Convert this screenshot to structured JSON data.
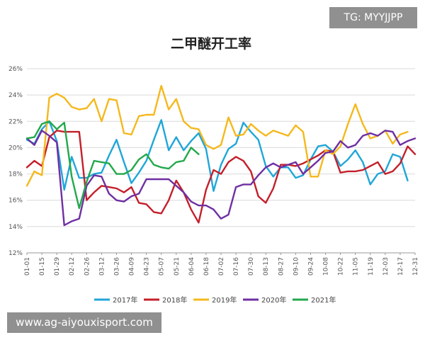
{
  "watermarks": {
    "top_right": "TG: MYYJJPP",
    "bottom_left": "www.ag-aiyouxisport.com"
  },
  "chart_data": {
    "type": "line",
    "title": "二甲醚开工率",
    "xlabel": "",
    "ylabel": "",
    "ylim": [
      12,
      26
    ],
    "y_ticks": [
      "12%",
      "14%",
      "16%",
      "18%",
      "20%",
      "22%",
      "24%",
      "26%"
    ],
    "x_tick_labels": [
      "01-01",
      "01-15",
      "01-29",
      "02-12",
      "02-26",
      "03-12",
      "03-26",
      "04-09",
      "04-23",
      "05-07",
      "05-21",
      "06-04",
      "06-18",
      "07-02",
      "07-16",
      "07-30",
      "08-13",
      "08-27",
      "09-10",
      "09-24",
      "10-08",
      "10-22",
      "11-05",
      "11-19",
      "12-03",
      "12-17",
      "12-31"
    ],
    "grid": "horizontal",
    "legend_position": "bottom",
    "series": [
      {
        "name": "2017年",
        "color": "#1fa6d8",
        "values": [
          20.6,
          20.3,
          21.4,
          22.0,
          20.5,
          16.8,
          19.3,
          17.7,
          17.7,
          18.0,
          18.1,
          19.4,
          20.6,
          18.9,
          17.3,
          18.1,
          19.0,
          20.6,
          22.1,
          19.8,
          20.8,
          19.8,
          20.5,
          21.1,
          19.9,
          16.7,
          18.7,
          19.9,
          20.3,
          21.9,
          21.2,
          20.6,
          18.6,
          17.8,
          18.5,
          18.5,
          17.7,
          17.9,
          19.1,
          20.1,
          20.2,
          19.7,
          18.6,
          19.1,
          19.8,
          18.9,
          17.2,
          18.0,
          18.2,
          19.5,
          19.3,
          17.5
        ]
      },
      {
        "name": "2018年",
        "color": "#c41f2a",
        "values": [
          18.5,
          19.0,
          18.6,
          20.8,
          21.3,
          21.2,
          21.2,
          21.2,
          16.0,
          16.6,
          17.1,
          17.0,
          16.9,
          16.6,
          17.0,
          15.8,
          15.7,
          15.1,
          15.0,
          16.0,
          17.5,
          16.6,
          15.3,
          14.3,
          16.8,
          18.3,
          18.0,
          18.9,
          19.3,
          19.0,
          18.2,
          16.3,
          15.8,
          16.9,
          18.7,
          18.7,
          18.6,
          18.8,
          19.1,
          19.4,
          19.8,
          19.7,
          18.1,
          18.2,
          18.2,
          18.3,
          18.6,
          18.9,
          18.0,
          18.2,
          18.8,
          20.1,
          19.5
        ]
      },
      {
        "name": "2019年",
        "color": "#f5b81c",
        "values": [
          17.1,
          18.2,
          17.9,
          23.8,
          24.1,
          23.8,
          23.1,
          22.9,
          23.0,
          23.7,
          22.0,
          23.7,
          23.6,
          21.1,
          21.0,
          22.4,
          22.5,
          22.5,
          24.7,
          22.9,
          23.7,
          22.0,
          21.5,
          21.4,
          20.2,
          19.9,
          20.2,
          22.3,
          20.9,
          21.0,
          21.8,
          21.3,
          20.9,
          21.3,
          21.1,
          20.9,
          21.7,
          21.2,
          17.8,
          17.8,
          19.8,
          19.5,
          20.1,
          21.8,
          23.3,
          21.8,
          20.7,
          20.9,
          21.3,
          20.3,
          21.0,
          21.2
        ]
      },
      {
        "name": "2020年",
        "color": "#6f2fa2",
        "values": [
          20.7,
          20.2,
          21.3,
          20.9,
          20.4,
          14.1,
          14.4,
          14.6,
          17.1,
          17.9,
          17.8,
          16.5,
          16.0,
          15.9,
          16.3,
          16.5,
          17.6,
          17.6,
          17.6,
          17.6,
          17.1,
          16.6,
          15.9,
          15.6,
          15.6,
          15.3,
          14.6,
          14.9,
          17.0,
          17.2,
          17.2,
          17.9,
          18.5,
          18.8,
          18.5,
          18.7,
          18.9,
          18.0,
          18.5,
          19.0,
          19.6,
          19.7,
          20.5,
          20.0,
          20.2,
          20.9,
          21.1,
          20.9,
          21.3,
          21.2,
          20.2,
          20.5,
          20.7
        ]
      },
      {
        "name": "2021年",
        "color": "#22a84a",
        "values": [
          20.7,
          20.8,
          21.8,
          22.0,
          21.4,
          21.9,
          17.8,
          15.4,
          17.4,
          19.0,
          18.9,
          18.8,
          18.0,
          18.0,
          18.3,
          19.1,
          19.5,
          18.7,
          18.5,
          18.4,
          18.9,
          19.0,
          20.0,
          19.5
        ]
      }
    ]
  }
}
